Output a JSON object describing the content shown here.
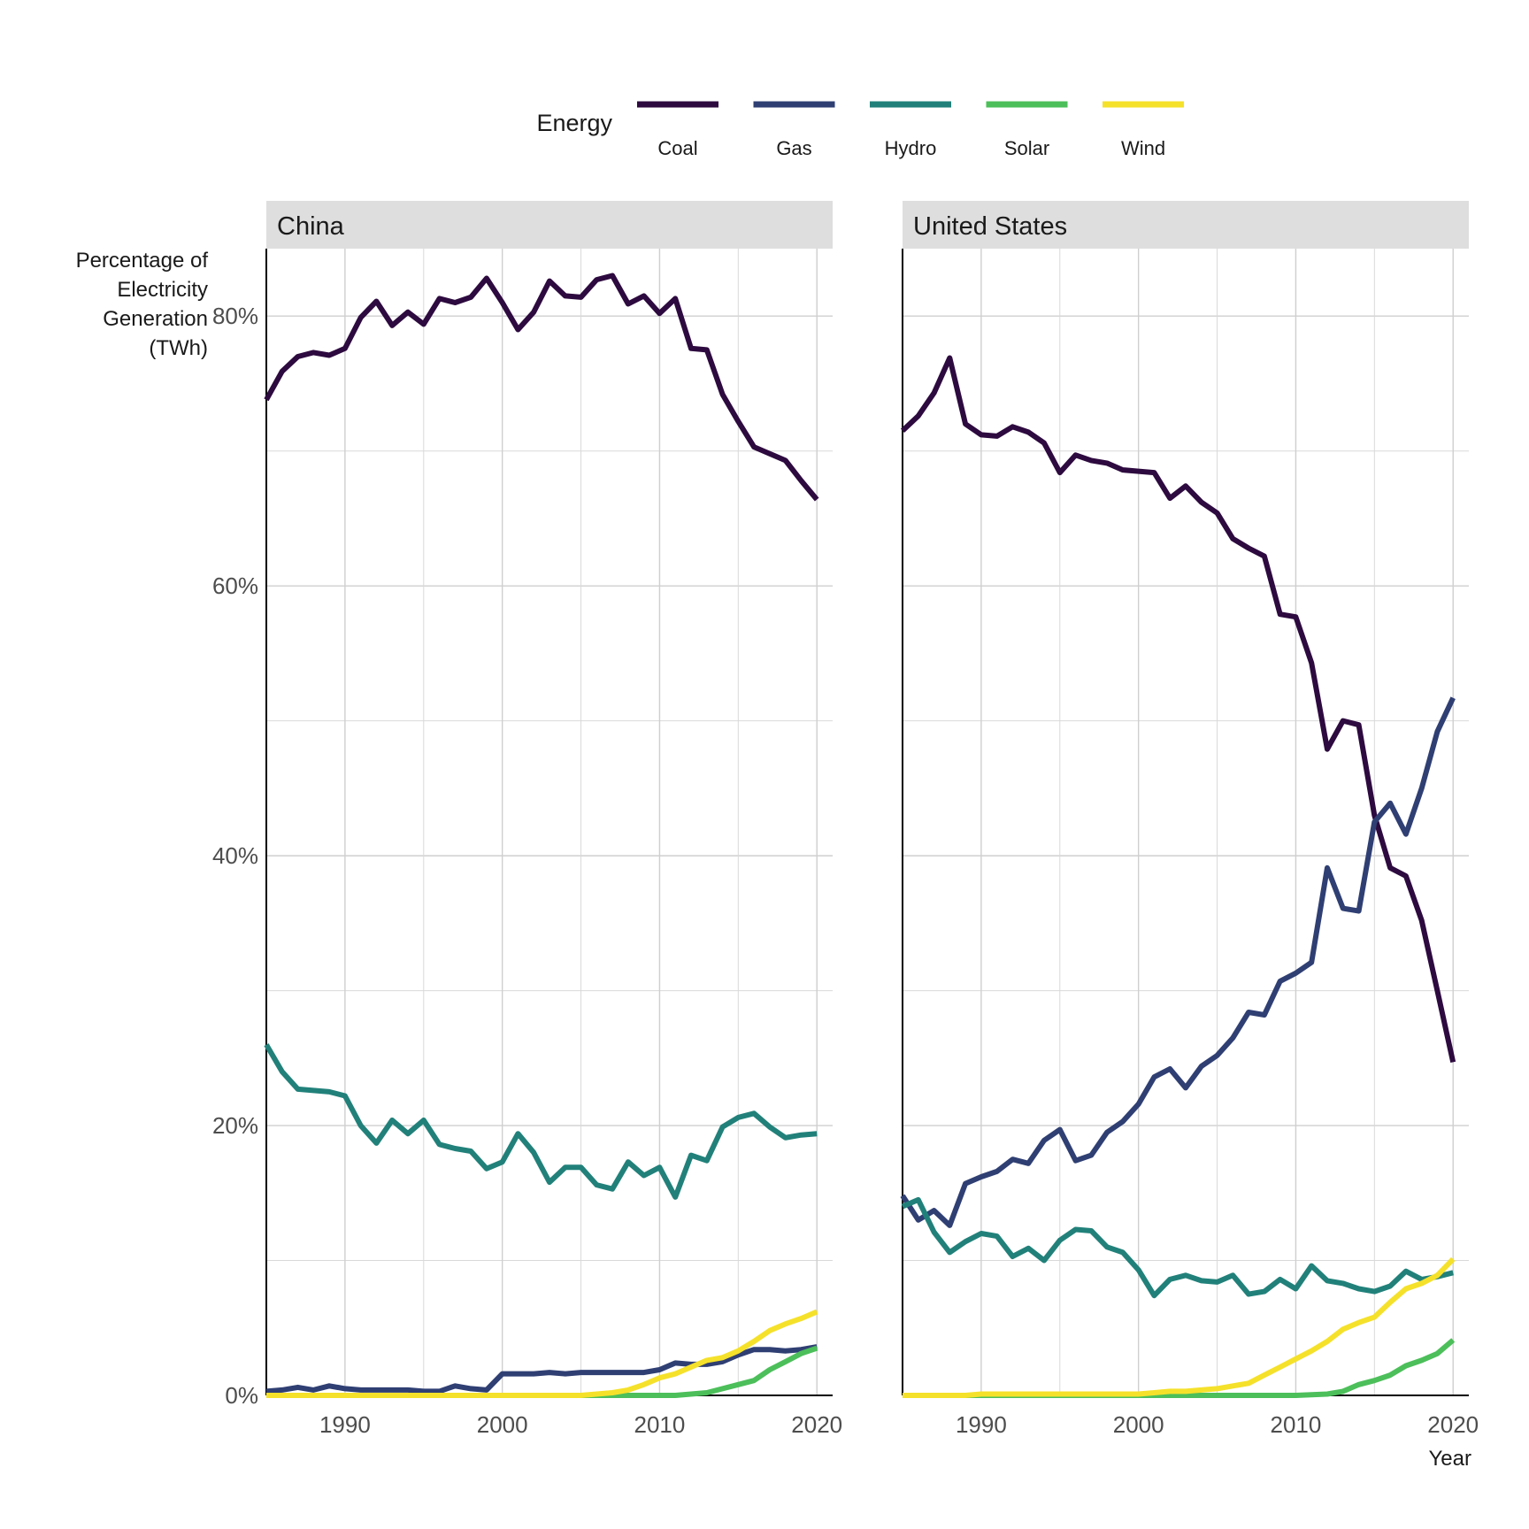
{
  "chart_data": {
    "type": "line",
    "legend": {
      "title": "Energy",
      "placement": "top",
      "entries": [
        {
          "name": "Coal",
          "color": "#2d0a3f"
        },
        {
          "name": "Gas",
          "color": "#2f3f73"
        },
        {
          "name": "Hydro",
          "color": "#21817a"
        },
        {
          "name": "Solar",
          "color": "#4cbf5a"
        },
        {
          "name": "Wind",
          "color": "#f5e12a"
        }
      ]
    },
    "ylabel": "Percentage of\nElectricity\nGeneration\n(TWh)",
    "xlabel": "Year",
    "xlim": [
      1985,
      2021
    ],
    "ylim": [
      0,
      85
    ],
    "x_ticks": [
      1990,
      2000,
      2010,
      2020
    ],
    "y_ticks": [
      0,
      20,
      40,
      60,
      80
    ],
    "y_tick_labels": [
      "0%",
      "20%",
      "40%",
      "60%",
      "80%"
    ],
    "grid": true,
    "years": [
      1985,
      1986,
      1987,
      1988,
      1989,
      1990,
      1991,
      1992,
      1993,
      1994,
      1995,
      1996,
      1997,
      1998,
      1999,
      2000,
      2001,
      2002,
      2003,
      2004,
      2005,
      2006,
      2007,
      2008,
      2009,
      2010,
      2011,
      2012,
      2013,
      2014,
      2015,
      2016,
      2017,
      2018,
      2019,
      2020
    ],
    "panels": [
      {
        "title": "China",
        "series": [
          {
            "name": "Coal",
            "values": [
              73.8,
              75.9,
              77.0,
              77.3,
              77.1,
              77.6,
              79.9,
              81.1,
              79.3,
              80.3,
              79.4,
              81.3,
              81.0,
              81.4,
              82.8,
              81.0,
              79.0,
              80.3,
              82.6,
              81.5,
              81.4,
              82.7,
              83.0,
              80.9,
              81.5,
              80.2,
              81.3,
              77.6,
              77.5,
              74.2,
              72.2,
              70.3,
              69.8,
              69.3,
              67.8,
              66.4
            ]
          },
          {
            "name": "Gas",
            "values": [
              0.3,
              0.4,
              0.6,
              0.4,
              0.7,
              0.5,
              0.4,
              0.4,
              0.4,
              0.4,
              0.3,
              0.3,
              0.7,
              0.5,
              0.4,
              1.6,
              1.6,
              1.6,
              1.7,
              1.6,
              1.7,
              1.7,
              1.7,
              1.7,
              1.7,
              1.9,
              2.4,
              2.3,
              2.3,
              2.5,
              3.0,
              3.4,
              3.4,
              3.3,
              3.4,
              3.6
            ]
          },
          {
            "name": "Hydro",
            "values": [
              26.0,
              24.0,
              22.7,
              22.6,
              22.5,
              22.2,
              20.0,
              18.7,
              20.4,
              19.4,
              20.4,
              18.6,
              18.3,
              18.1,
              16.8,
              17.3,
              19.4,
              18.0,
              15.8,
              16.9,
              16.9,
              15.6,
              15.3,
              17.3,
              16.3,
              16.9,
              14.7,
              17.8,
              17.4,
              19.9,
              20.6,
              20.9,
              19.9,
              19.1,
              19.3,
              19.4
            ]
          },
          {
            "name": "Solar",
            "values": [
              0,
              0,
              0,
              0,
              0,
              0,
              0,
              0,
              0,
              0,
              0,
              0,
              0,
              0,
              0,
              0,
              0,
              0,
              0,
              0,
              0,
              0,
              0,
              0,
              0,
              0,
              0,
              0.1,
              0.2,
              0.5,
              0.8,
              1.1,
              1.9,
              2.5,
              3.1,
              3.5
            ]
          },
          {
            "name": "Wind",
            "values": [
              0,
              0,
              0,
              0,
              0,
              0,
              0,
              0,
              0,
              0,
              0,
              0,
              0,
              0,
              0,
              0,
              0,
              0,
              0,
              0,
              0,
              0.1,
              0.2,
              0.4,
              0.8,
              1.3,
              1.6,
              2.1,
              2.6,
              2.8,
              3.3,
              4.0,
              4.8,
              5.3,
              5.7,
              6.2
            ]
          }
        ]
      },
      {
        "title": "United States",
        "series": [
          {
            "name": "Coal",
            "values": [
              71.5,
              72.6,
              74.3,
              76.9,
              72.0,
              71.2,
              71.1,
              71.8,
              71.4,
              70.6,
              68.4,
              69.7,
              69.3,
              69.1,
              68.6,
              68.5,
              68.4,
              66.5,
              67.4,
              66.2,
              65.4,
              63.5,
              62.8,
              62.2,
              57.9,
              57.7,
              54.3,
              47.9,
              50.0,
              49.7,
              43.0,
              39.1,
              38.5,
              35.2,
              30.0,
              24.7
            ]
          },
          {
            "name": "Gas",
            "values": [
              14.8,
              13.0,
              13.7,
              12.6,
              15.7,
              16.2,
              16.6,
              17.5,
              17.2,
              18.9,
              19.7,
              17.4,
              17.8,
              19.5,
              20.3,
              21.6,
              23.6,
              24.2,
              22.8,
              24.4,
              25.2,
              26.5,
              28.4,
              28.2,
              30.7,
              31.3,
              32.1,
              39.1,
              36.1,
              35.9,
              42.5,
              43.9,
              41.6,
              45.0,
              49.2,
              51.7
            ]
          },
          {
            "name": "Hydro",
            "values": [
              14.0,
              14.5,
              12.1,
              10.6,
              11.4,
              12.0,
              11.8,
              10.3,
              10.9,
              10.0,
              11.5,
              12.3,
              12.2,
              11.0,
              10.6,
              9.3,
              7.4,
              8.6,
              8.9,
              8.5,
              8.4,
              8.9,
              7.5,
              7.7,
              8.6,
              7.9,
              9.6,
              8.5,
              8.3,
              7.9,
              7.7,
              8.1,
              9.2,
              8.6,
              8.8,
              9.1
            ]
          },
          {
            "name": "Solar",
            "values": [
              0,
              0,
              0,
              0,
              0,
              0,
              0,
              0,
              0,
              0,
              0,
              0,
              0,
              0,
              0,
              0,
              0,
              0,
              0,
              0,
              0,
              0,
              0,
              0,
              0,
              0,
              0.05,
              0.1,
              0.3,
              0.8,
              1.1,
              1.5,
              2.2,
              2.6,
              3.1,
              4.1
            ]
          },
          {
            "name": "Wind",
            "values": [
              0,
              0,
              0,
              0,
              0,
              0.1,
              0.1,
              0.1,
              0.1,
              0.1,
              0.1,
              0.1,
              0.1,
              0.1,
              0.1,
              0.1,
              0.2,
              0.3,
              0.3,
              0.4,
              0.5,
              0.7,
              0.9,
              1.5,
              2.1,
              2.7,
              3.3,
              4.0,
              4.9,
              5.4,
              5.8,
              6.9,
              7.9,
              8.3,
              8.9,
              10.1
            ]
          }
        ]
      }
    ]
  }
}
